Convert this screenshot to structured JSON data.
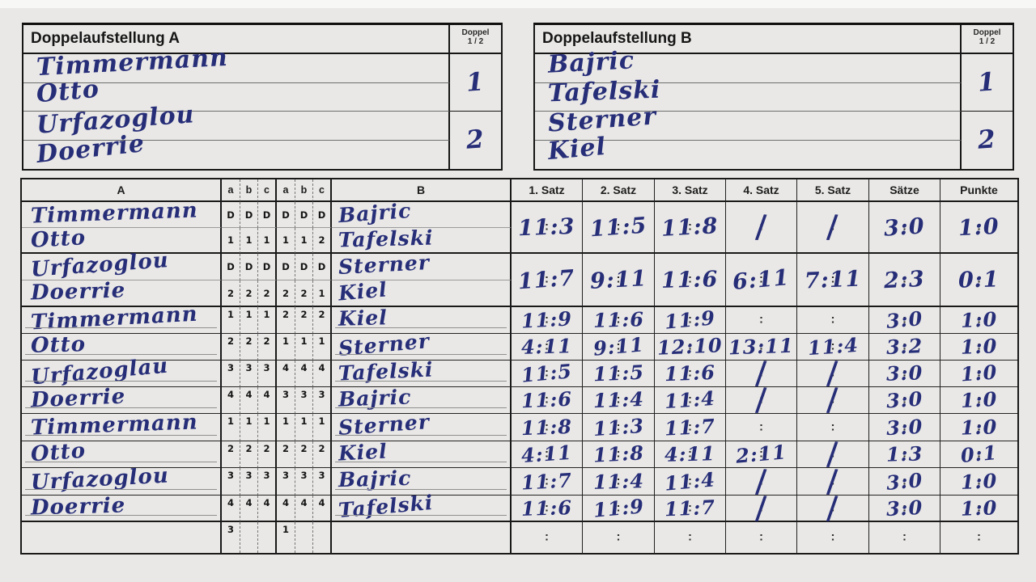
{
  "colors": {
    "paper": "#e9e8e6",
    "ink": "#1a1a1a",
    "pen": "#272e78"
  },
  "lineup_a": {
    "title": "Doppelaufstellung A",
    "doppel_header": {
      "line1": "Doppel",
      "line2": "1 / 2"
    },
    "players": [
      "Timmermann",
      "Otto",
      "Urfazoglou",
      "Doerrie"
    ],
    "doppel_numbers": [
      "1",
      "2"
    ]
  },
  "lineup_b": {
    "title": "Doppelaufstellung B",
    "doppel_header": {
      "line1": "Doppel",
      "line2": "1 / 2"
    },
    "players": [
      "Bajric",
      "Tafelski",
      "Sterner",
      "Kiel"
    ],
    "doppel_numbers": [
      "1",
      "2"
    ]
  },
  "match_table": {
    "headers": {
      "a": "A",
      "abc": [
        "a",
        "b",
        "c",
        "a",
        "b",
        "c"
      ],
      "b": "B",
      "sets": [
        "1. Satz",
        "2. Satz",
        "3. Satz",
        "4. Satz",
        "5. Satz"
      ],
      "saetze": "Sätze",
      "punkte": "Punkte"
    },
    "rows": [
      {
        "type": "doubles",
        "players_a": [
          "Timmermann",
          "Otto"
        ],
        "players_b": [
          "Bajric",
          "Tafelski"
        ],
        "codes_top": [
          "D",
          "D",
          "D",
          "D",
          "D",
          "D"
        ],
        "codes_bottom": [
          "1",
          "1",
          "1",
          "1",
          "1",
          "2"
        ],
        "sets": [
          "11:3",
          "11:5",
          "11:8",
          "/",
          "/"
        ],
        "saetze": "3:0",
        "punkte": "1:0"
      },
      {
        "type": "doubles",
        "players_a": [
          "Urfazoglou",
          "Doerrie"
        ],
        "players_b": [
          "Sterner",
          "Kiel"
        ],
        "codes_top": [
          "D",
          "D",
          "D",
          "D",
          "D",
          "D"
        ],
        "codes_bottom": [
          "2",
          "2",
          "2",
          "2",
          "2",
          "1"
        ],
        "sets": [
          "11:7",
          "9:11",
          "11:6",
          "6:11",
          "7:11"
        ],
        "saetze": "2:3",
        "punkte": "0:1"
      },
      {
        "type": "singles",
        "player_a": "Timmermann",
        "player_b": "Kiel",
        "codes": [
          "1",
          "1",
          "1",
          "2",
          "2",
          "2"
        ],
        "sets": [
          "11:9",
          "11:6",
          "11:9",
          "",
          ""
        ],
        "saetze": "3:0",
        "punkte": "1:0"
      },
      {
        "type": "singles",
        "player_a": "Otto",
        "player_b": "Sterner",
        "codes": [
          "2",
          "2",
          "2",
          "1",
          "1",
          "1"
        ],
        "sets": [
          "4:11",
          "9:11",
          "12:10",
          "13:11",
          "11:4"
        ],
        "saetze": "3:2",
        "punkte": "1:0"
      },
      {
        "type": "singles",
        "player_a": "Urfazoglau",
        "player_b": "Tafelski",
        "codes": [
          "3",
          "3",
          "3",
          "4",
          "4",
          "4"
        ],
        "sets": [
          "11:5",
          "11:5",
          "11:6",
          "/",
          "/"
        ],
        "saetze": "3:0",
        "punkte": "1:0"
      },
      {
        "type": "singles",
        "player_a": "Doerrie",
        "player_b": "Bajric",
        "codes": [
          "4",
          "4",
          "4",
          "3",
          "3",
          "3"
        ],
        "sets": [
          "11:6",
          "11:4",
          "11:4",
          "/",
          "/"
        ],
        "saetze": "3:0",
        "punkte": "1:0"
      },
      {
        "type": "singles",
        "player_a": "Timmermann",
        "player_b": "Sterner",
        "codes": [
          "1",
          "1",
          "1",
          "1",
          "1",
          "1"
        ],
        "sets": [
          "11:8",
          "11:3",
          "11:7",
          "",
          ""
        ],
        "saetze": "3:0",
        "punkte": "1:0"
      },
      {
        "type": "singles",
        "player_a": "Otto",
        "player_b": "Kiel",
        "codes": [
          "2",
          "2",
          "2",
          "2",
          "2",
          "2"
        ],
        "sets": [
          "4:11",
          "11:8",
          "4:11",
          "2:11",
          "/"
        ],
        "saetze": "1:3",
        "punkte": "0:1"
      },
      {
        "type": "singles",
        "player_a": "Urfazoglou",
        "player_b": "Bajric",
        "codes": [
          "3",
          "3",
          "3",
          "3",
          "3",
          "3"
        ],
        "sets": [
          "11:7",
          "11:4",
          "11:4",
          "/",
          "/"
        ],
        "saetze": "3:0",
        "punkte": "1:0"
      },
      {
        "type": "singles",
        "player_a": "Doerrie",
        "player_b": "Tafelski",
        "codes": [
          "4",
          "4",
          "4",
          "4",
          "4",
          "4"
        ],
        "sets": [
          "11:6",
          "11:9",
          "11:7",
          "/",
          "/"
        ],
        "saetze": "3:0",
        "punkte": "1:0"
      },
      {
        "type": "empty",
        "player_a": "",
        "player_b": "",
        "codes": [
          "3",
          "",
          "",
          "1",
          "",
          ""
        ],
        "sets": [
          "",
          "",
          "",
          "",
          ""
        ],
        "saetze": "",
        "punkte": ""
      }
    ]
  }
}
